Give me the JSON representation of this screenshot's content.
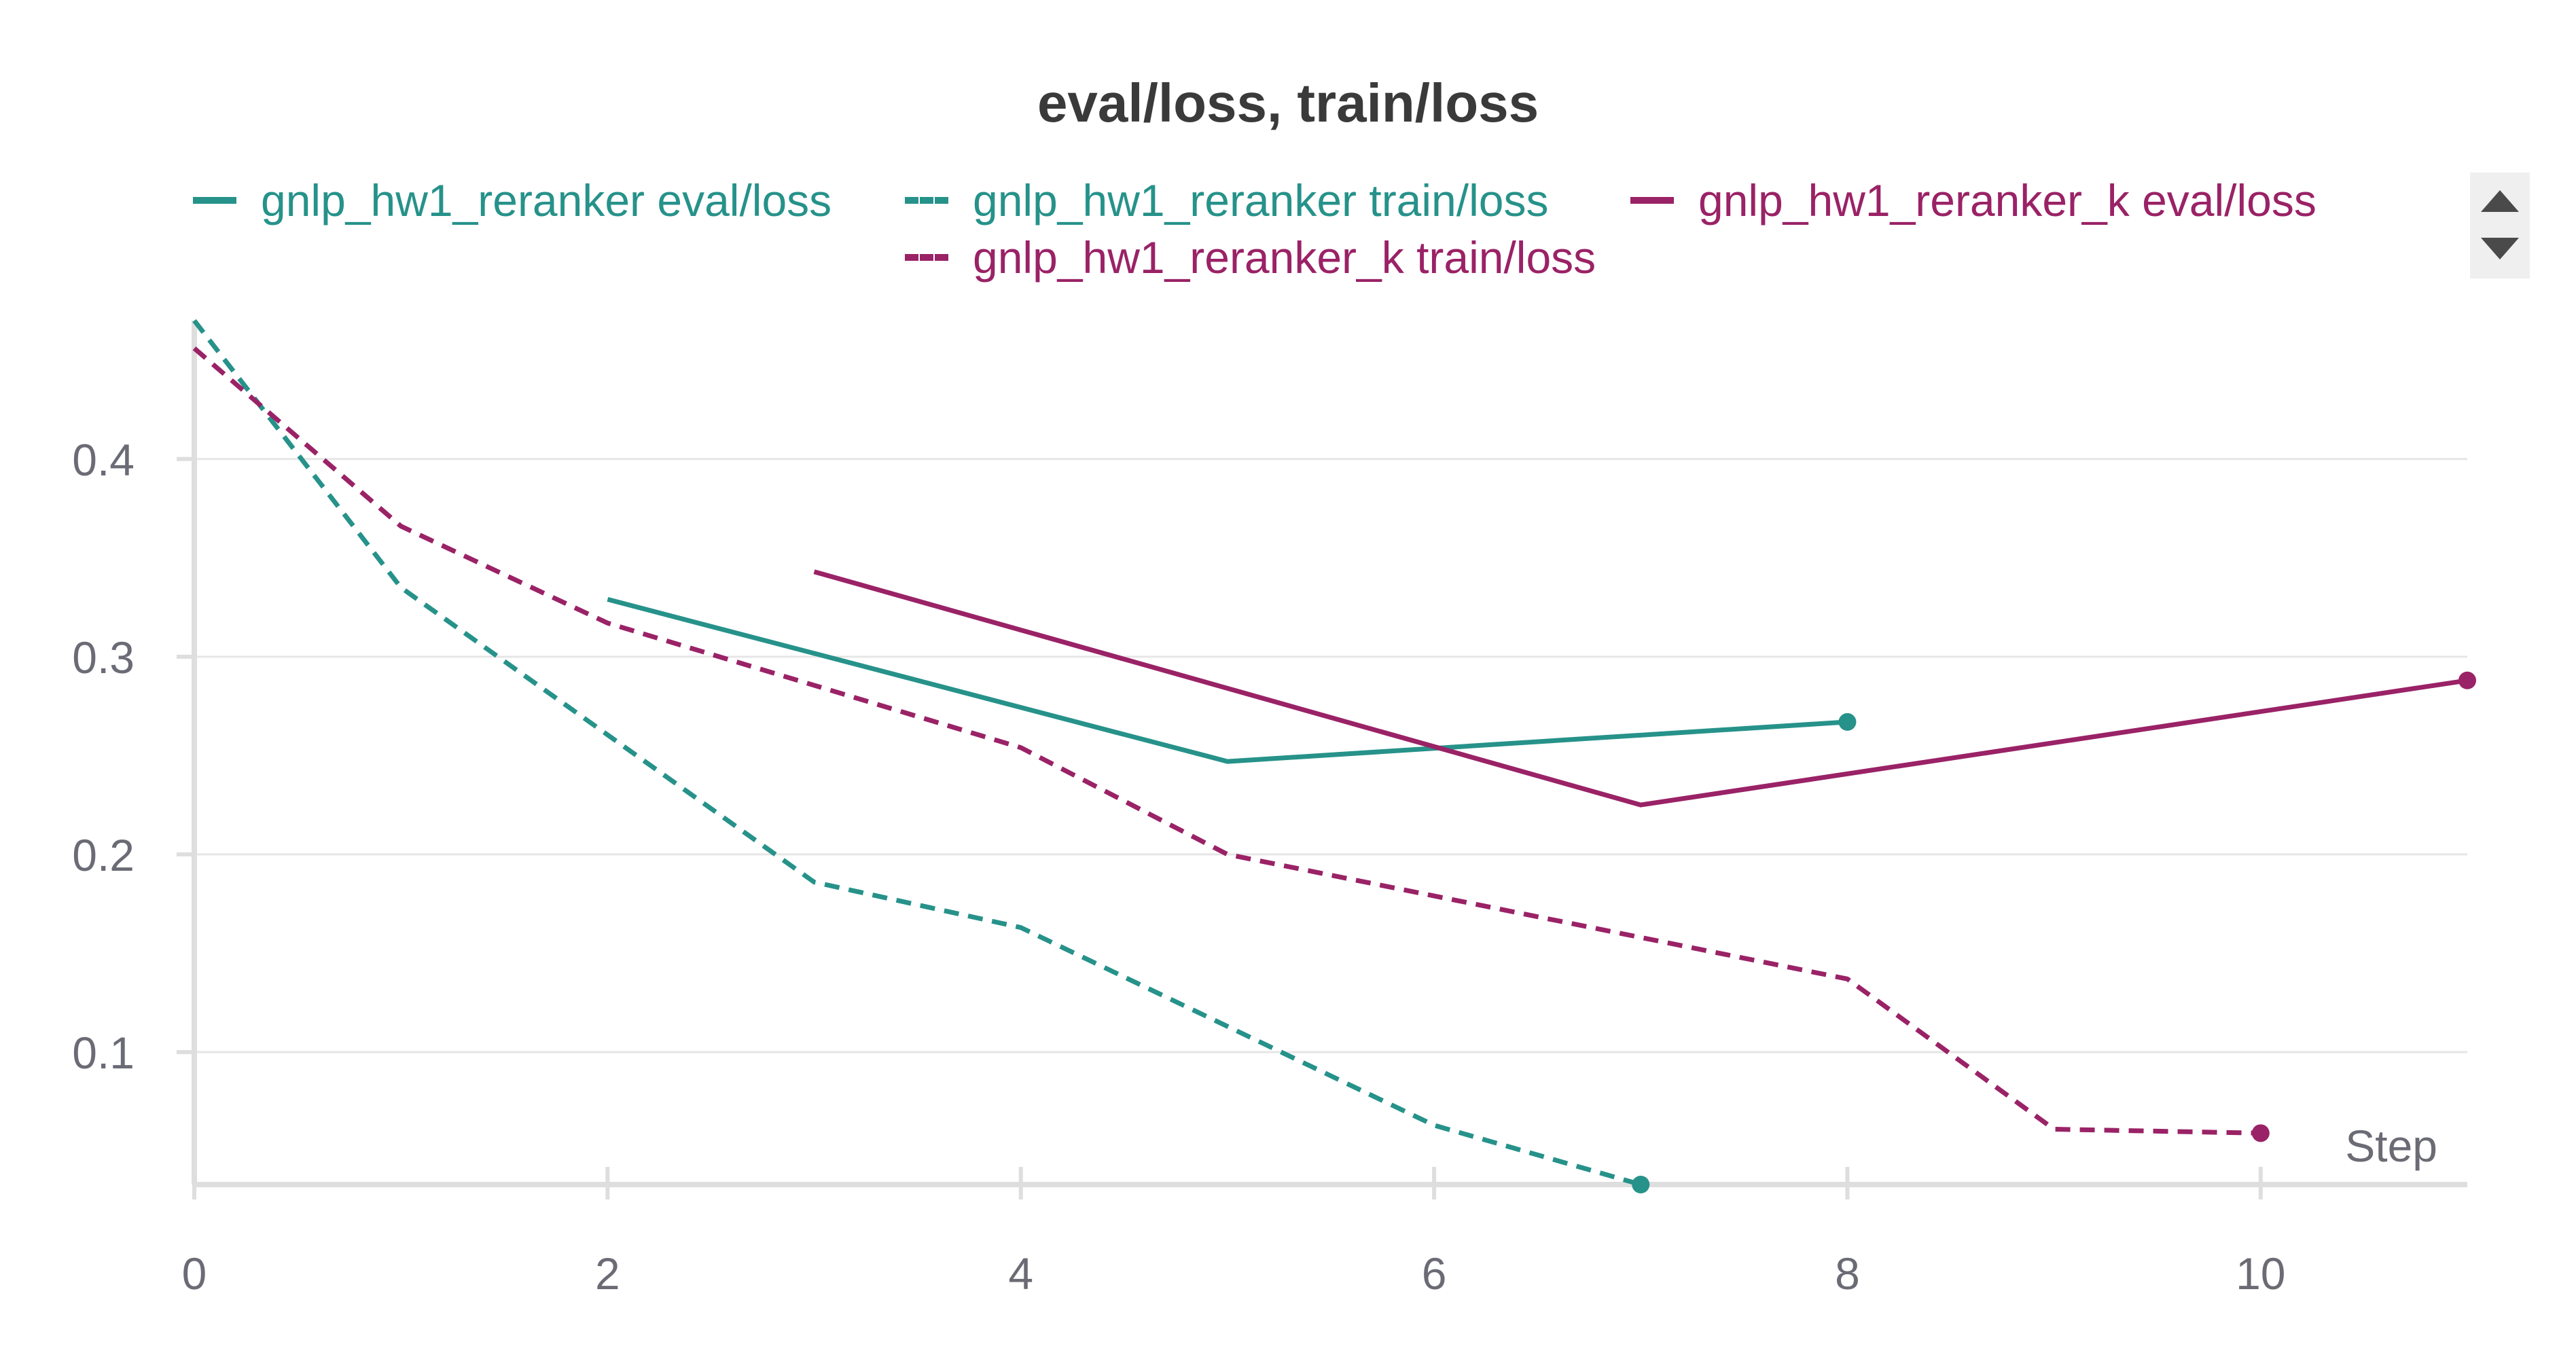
{
  "chart_data": {
    "type": "line",
    "title": "eval/loss, train/loss",
    "xlabel": "Step",
    "ylabel": "",
    "xlim": [
      0,
      11
    ],
    "ylim": [
      0.033,
      0.47
    ],
    "x_ticks": [
      0,
      2,
      4,
      6,
      8,
      10
    ],
    "y_ticks": [
      0.1,
      0.2,
      0.3,
      0.4
    ],
    "grid": true,
    "legend_position": "top",
    "series": [
      {
        "name": "gnlp_hw1_reranker eval/loss",
        "color": "#26928a",
        "dashed": false,
        "end_marker": true,
        "x": [
          2,
          5,
          8
        ],
        "values": [
          0.329,
          0.247,
          0.267
        ]
      },
      {
        "name": "gnlp_hw1_reranker train/loss",
        "color": "#26928a",
        "dashed": true,
        "end_marker": true,
        "x": [
          0,
          1,
          3,
          4,
          6,
          7
        ],
        "values": [
          0.47,
          0.335,
          0.186,
          0.163,
          0.063,
          0.033
        ]
      },
      {
        "name": "gnlp_hw1_reranker_k eval/loss",
        "color": "#9a2266",
        "dashed": false,
        "end_marker": true,
        "x": [
          3,
          7,
          11
        ],
        "values": [
          0.343,
          0.225,
          0.288
        ]
      },
      {
        "name": "gnlp_hw1_reranker_k train/loss",
        "color": "#9a2266",
        "dashed": true,
        "end_marker": true,
        "x": [
          0,
          1,
          2,
          4,
          5,
          8,
          9,
          10
        ],
        "values": [
          0.456,
          0.366,
          0.317,
          0.254,
          0.2,
          0.137,
          0.061,
          0.059
        ]
      }
    ]
  }
}
